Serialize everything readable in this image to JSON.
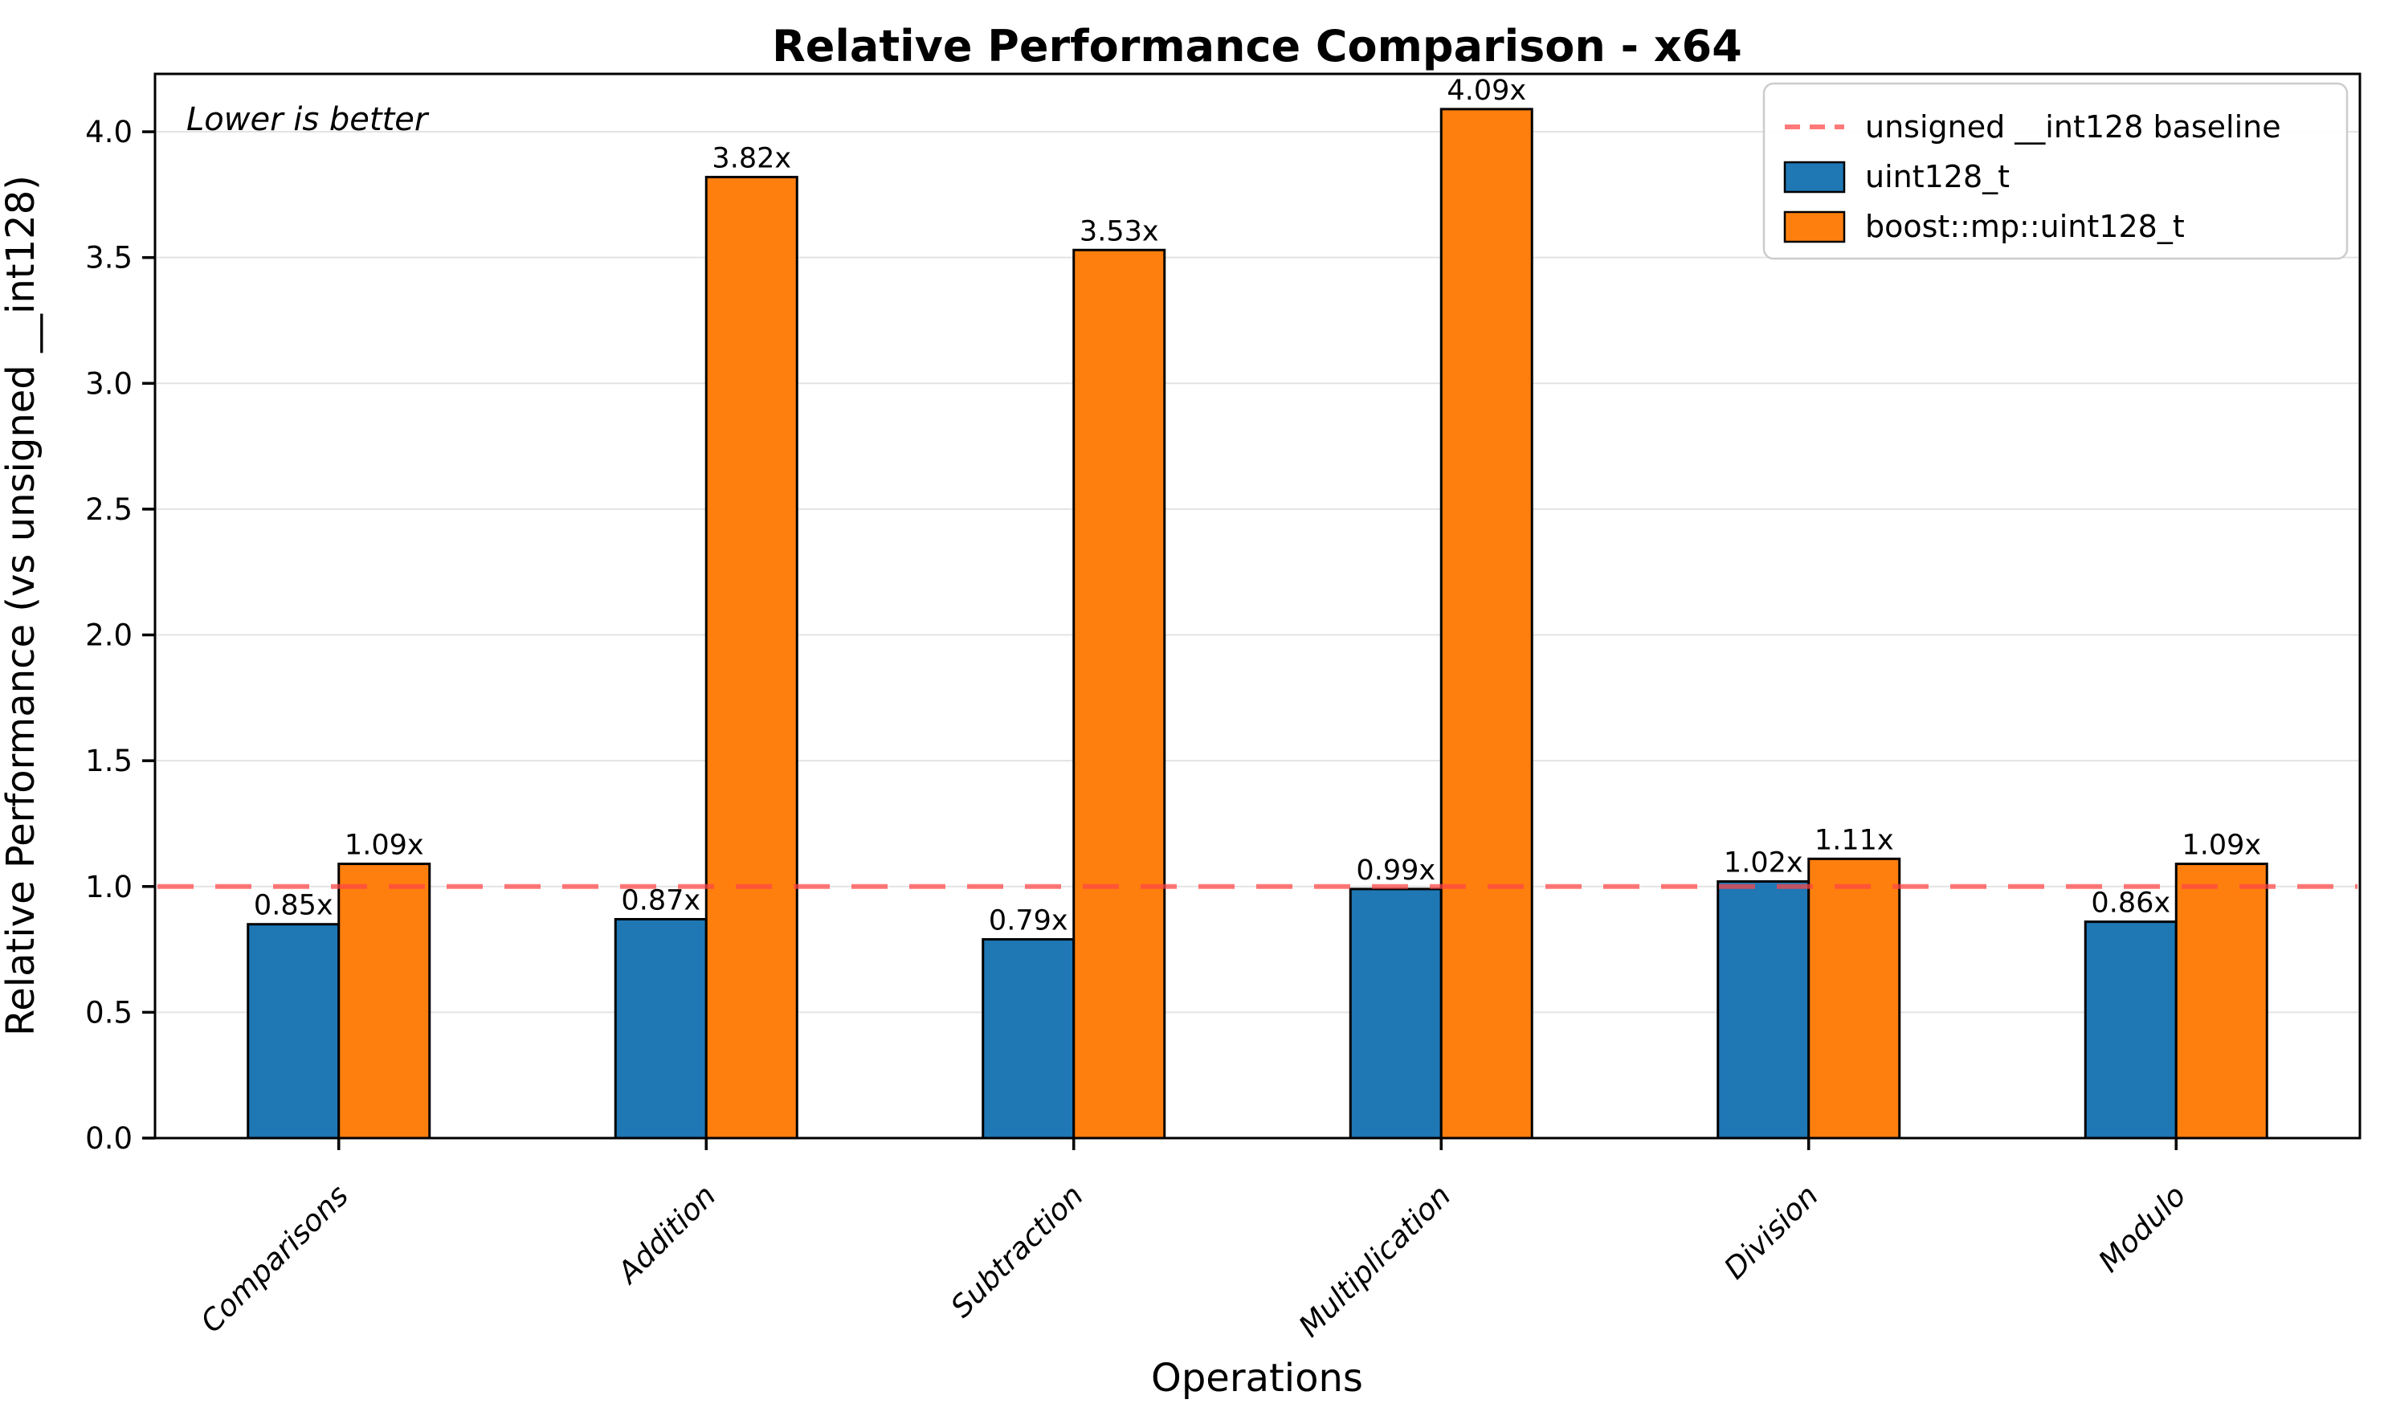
{
  "chart_data": {
    "type": "bar",
    "title": "Relative Performance Comparison - x64",
    "xlabel": "Operations",
    "ylabel": "Relative Performance (vs unsigned __int128)",
    "annotation": "Lower is better",
    "categories": [
      "Comparisons",
      "Addition",
      "Subtraction",
      "Multiplication",
      "Division",
      "Modulo"
    ],
    "series": [
      {
        "name": "uint128_t",
        "color": "#1f77b4",
        "values": [
          0.85,
          0.87,
          0.79,
          0.99,
          1.02,
          0.86
        ],
        "labels": [
          "0.85x",
          "0.87x",
          "0.79x",
          "0.99x",
          "1.02x",
          "0.86x"
        ]
      },
      {
        "name": "boost::mp::uint128_t",
        "color": "#ff7f0e",
        "values": [
          1.09,
          3.82,
          3.53,
          4.09,
          1.11,
          1.09
        ],
        "labels": [
          "1.09x",
          "3.82x",
          "3.53x",
          "4.09x",
          "1.11x",
          "1.09x"
        ]
      }
    ],
    "baseline": {
      "value": 1.0,
      "label": "unsigned __int128 baseline",
      "color": "#ff4646",
      "opacity": 0.72
    },
    "y_ticks": [
      0.0,
      0.5,
      1.0,
      1.5,
      2.0,
      2.5,
      3.0,
      3.5,
      4.0
    ],
    "y_tick_labels": [
      "0.0",
      "0.5",
      "1.0",
      "1.5",
      "2.0",
      "2.5",
      "3.0",
      "3.5",
      "4.0"
    ],
    "ylim": [
      0,
      4.23
    ],
    "grid": true,
    "grid_color": "#e3e3e3",
    "bar_edge_color": "#000000",
    "legend_position": "upper right",
    "frame_color": "#000000"
  }
}
